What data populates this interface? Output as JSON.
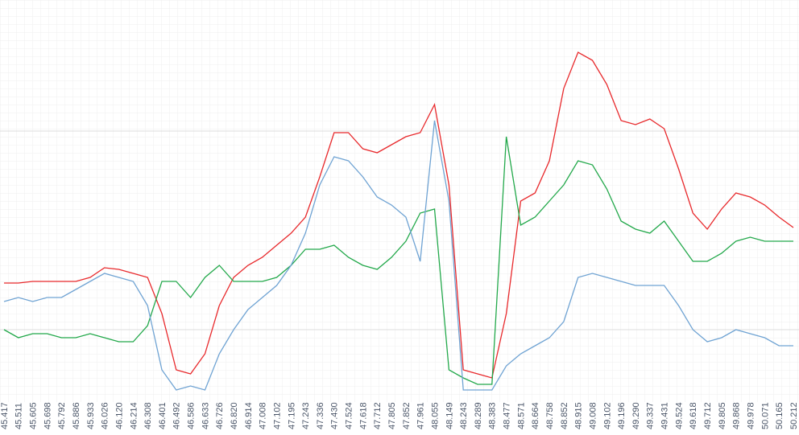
{
  "chart_data": {
    "type": "line",
    "categories": [
      "45.417",
      "45.511",
      "45.605",
      "45.698",
      "45.792",
      "45.886",
      "45.933",
      "46.026",
      "46.120",
      "46.214",
      "46.308",
      "46.401",
      "46.492",
      "46.586",
      "46.633",
      "46.726",
      "46.820",
      "46.914",
      "47.008",
      "47.102",
      "47.195",
      "47.243",
      "47.336",
      "47.430",
      "47.524",
      "47.618",
      "47.712",
      "47.805",
      "47.852",
      "47.961",
      "48.055",
      "48.149",
      "48.243",
      "48.289",
      "48.383",
      "48.477",
      "48.571",
      "48.664",
      "48.758",
      "48.852",
      "48.915",
      "49.008",
      "49.102",
      "49.196",
      "49.290",
      "49.337",
      "49.431",
      "49.524",
      "49.618",
      "49.712",
      "49.805",
      "49.868",
      "49.978",
      "50.071",
      "50.165",
      "50.212"
    ],
    "series": [
      {
        "color": "#e8282b",
        "values": [
          29.6,
          29.6,
          30,
          30,
          30,
          30,
          31,
          33.4,
          33,
          32,
          31,
          22,
          8,
          7,
          12,
          24,
          31,
          34,
          36,
          39,
          42,
          46,
          56,
          67,
          67,
          63,
          62,
          64,
          66,
          67,
          74,
          54,
          8,
          7,
          6,
          22,
          50,
          52,
          60,
          78,
          87,
          85,
          79,
          70,
          69,
          70.4,
          68,
          58,
          47,
          43,
          48,
          52,
          51,
          49,
          46,
          43.4
        ]
      },
      {
        "color": "#22a84a",
        "values": [
          18,
          16,
          17,
          17,
          16,
          16,
          17,
          16,
          15,
          15,
          19,
          30,
          30,
          26,
          31,
          34,
          30,
          30,
          30,
          31,
          34,
          38,
          38,
          39,
          36,
          34,
          33,
          36,
          40,
          47,
          48,
          8,
          6,
          4.4,
          4.4,
          66,
          44,
          46,
          50,
          54,
          60,
          59,
          53,
          45,
          43,
          42,
          45,
          40,
          35,
          35,
          37,
          40,
          41,
          40,
          40,
          40
        ]
      },
      {
        "color": "#6fa3d3",
        "values": [
          25,
          26,
          25,
          26,
          26,
          28,
          30,
          32,
          31,
          30,
          24,
          8,
          3,
          4,
          3,
          12,
          18,
          23,
          26,
          29,
          34,
          42,
          54,
          61,
          60,
          56,
          51,
          49,
          46,
          35,
          70,
          50,
          3,
          3,
          3,
          9,
          12,
          14,
          16,
          20,
          31,
          32,
          31,
          30,
          29,
          29,
          29,
          24,
          18,
          15,
          16,
          18,
          17,
          16,
          14,
          14
        ]
      }
    ],
    "ylim": [
      0,
      100
    ],
    "grid": true
  }
}
